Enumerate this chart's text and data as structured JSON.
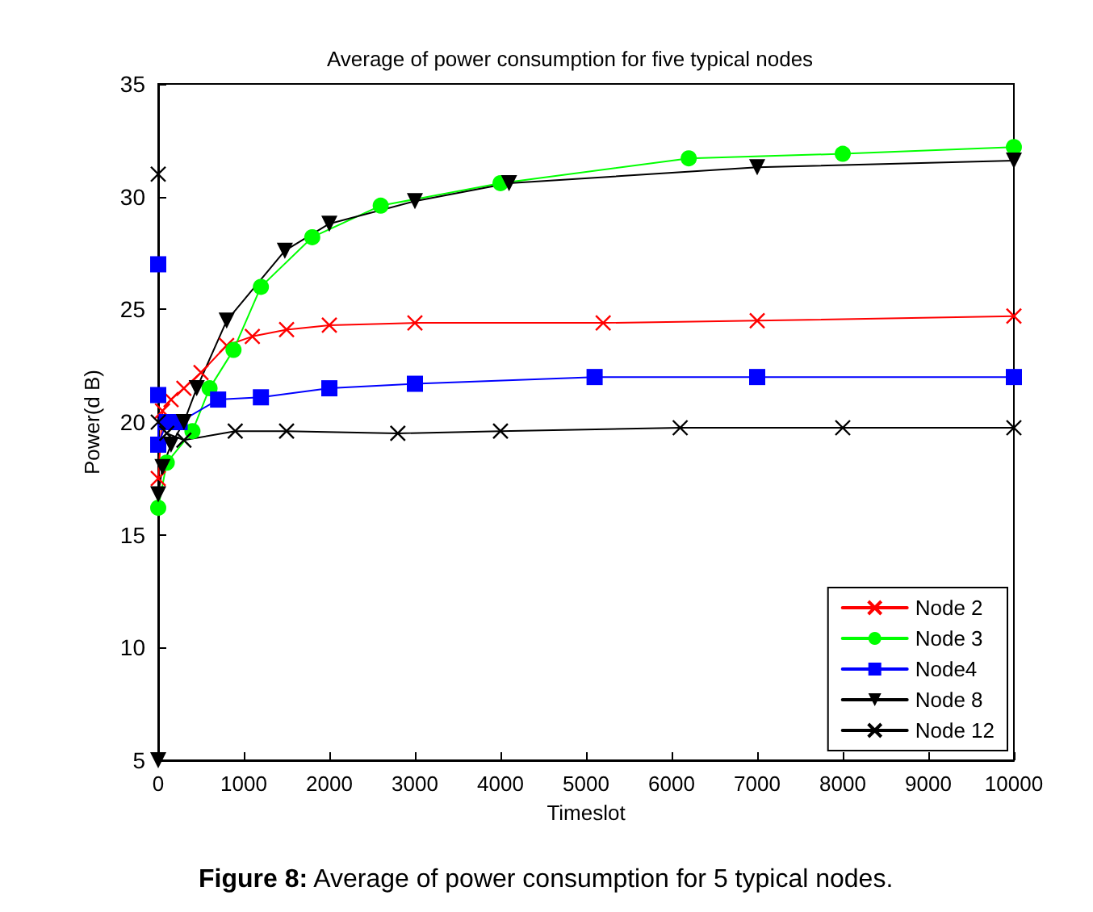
{
  "chart_data": {
    "type": "line",
    "title": "Average of power consumption for five typical nodes",
    "xlabel": "Timeslot",
    "ylabel": "Power(d B)",
    "annotations": [
      "Figure 8: Average of power consumption for 5 typical nodes."
    ],
    "xlim": [
      0,
      10000
    ],
    "xticks": [
      0,
      1000,
      2000,
      3000,
      4000,
      5000,
      6000,
      7000,
      8000,
      9000,
      10000
    ],
    "ylim": [
      5,
      35
    ],
    "yticks": [
      5,
      10,
      15,
      20,
      25,
      30,
      35
    ],
    "grid": false,
    "legend": "bottom right",
    "line_style": "solid",
    "series": [
      {
        "name": "Node 2",
        "color": "#ff0000",
        "marker": "cross",
        "x": [
          0,
          50,
          150,
          300,
          500,
          800,
          1100,
          1500,
          2000,
          3000,
          5200,
          7000,
          10000
        ],
        "values": [
          17.5,
          20.5,
          21,
          21.5,
          22.2,
          23.4,
          23.8,
          24.1,
          24.3,
          24.4,
          24.4,
          24.5,
          24.7
        ]
      },
      {
        "name": "Node 3",
        "color": "#00ff00",
        "marker": "circle",
        "x": [
          0,
          100,
          400,
          600,
          880,
          1200,
          1800,
          2600,
          4000,
          6200,
          8000,
          10000
        ],
        "values": [
          16.2,
          18.2,
          19.6,
          21.5,
          23.2,
          26,
          28.2,
          29.6,
          30.6,
          31.7,
          31.9,
          32.2
        ]
      },
      {
        "name": "Node4",
        "color": "#0000ff",
        "marker": "square",
        "x": [
          0,
          0,
          0,
          100,
          250,
          700,
          1200,
          2000,
          3000,
          5100,
          7000,
          10000
        ],
        "values": [
          27,
          21.2,
          19,
          20,
          20,
          21,
          21.1,
          21.5,
          21.7,
          22,
          22,
          22
        ]
      },
      {
        "name": "Node 8",
        "color": "#000000",
        "marker": "triangle",
        "x": [
          0,
          0,
          50,
          150,
          300,
          450,
          800,
          1480,
          2000,
          3000,
          4100,
          7000,
          10000
        ],
        "values": [
          5,
          16.8,
          18,
          19,
          20,
          21.5,
          24.5,
          27.6,
          28.8,
          29.8,
          30.6,
          31.3,
          31.6
        ]
      },
      {
        "name": "Node 12",
        "color": "#000000",
        "marker": "cross",
        "x": [
          0,
          0,
          100,
          300,
          900,
          1500,
          2800,
          4000,
          6100,
          8000,
          10000
        ],
        "values": [
          31,
          20,
          19.5,
          19.2,
          19.6,
          19.6,
          19.5,
          19.6,
          19.75,
          19.75,
          19.75
        ]
      }
    ]
  }
}
